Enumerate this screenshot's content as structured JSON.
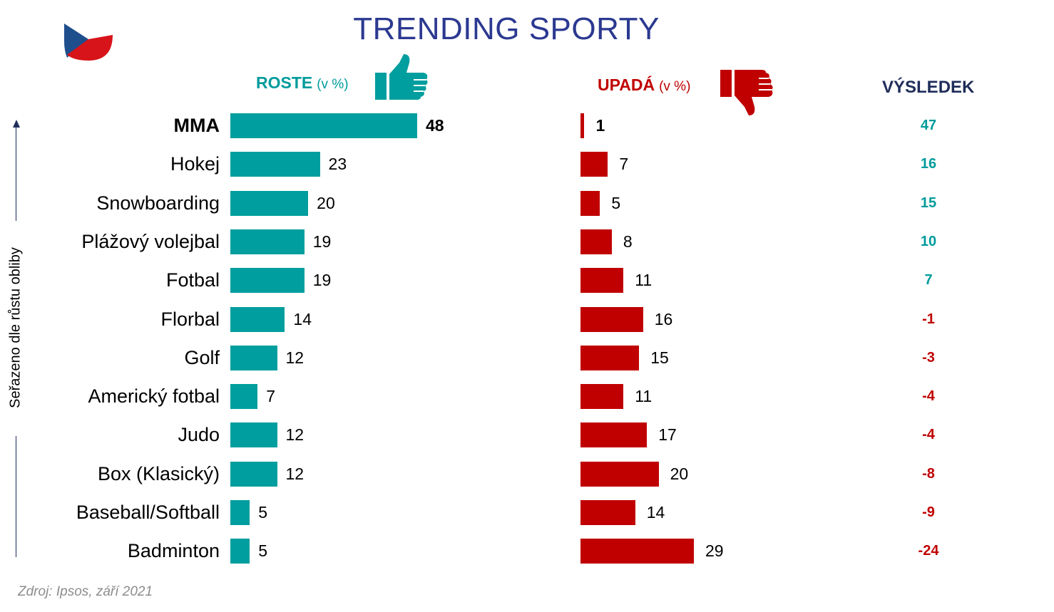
{
  "title": "TRENDING SPORTY",
  "headers": {
    "growing": "ROSTE",
    "growing_unit": "(v %)",
    "declining": "UPADÁ",
    "declining_unit": "(v %)",
    "result": "VÝSLEDEK"
  },
  "axis_label": "Seřazeno dle růstu obliby",
  "source": "Zdroj: Ipsos, září 2021",
  "colors": {
    "growing": "#009e9e",
    "declining": "#c00000",
    "positive_result": "#009b9b",
    "negative_result": "#c00000",
    "title": "#2b3990"
  },
  "icons": {
    "flag": "czech-flag-icon",
    "growing": "thumbs-up-icon",
    "declining": "thumbs-down-icon"
  },
  "chart_data": {
    "type": "bar",
    "title": "TRENDING SPORTY",
    "categories": [
      "MMA",
      "Hokej",
      "Snowboarding",
      "Plážový  volejbal",
      "Fotbal",
      "Florbal",
      "Golf",
      "Americký fotbal",
      "Judo",
      "Box (Klasický)",
      "Baseball/Softball",
      "Badminton"
    ],
    "series": [
      {
        "name": "ROSTE",
        "values": [
          48,
          23,
          20,
          19,
          19,
          14,
          12,
          7,
          12,
          12,
          5,
          5
        ]
      },
      {
        "name": "UPADÁ",
        "values": [
          1,
          7,
          5,
          8,
          11,
          16,
          15,
          11,
          17,
          20,
          14,
          29
        ]
      }
    ],
    "result": [
      47,
      16,
      15,
      10,
      7,
      -1,
      -3,
      -4,
      -4,
      -8,
      -9,
      -24
    ],
    "bold_category": "MMA"
  }
}
